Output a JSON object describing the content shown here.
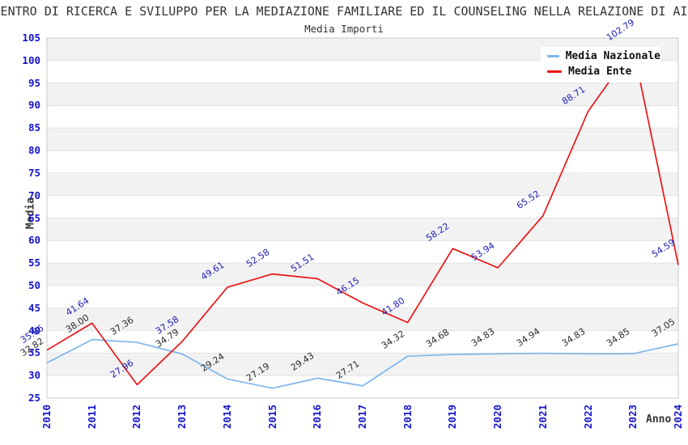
{
  "chart_data": {
    "type": "line",
    "title": "CENTRO DI RICERCA E SVILUPPO PER LA MEDIAZIONE FAMILIARE ED IL COUNSELING NELLA RELAZIONE DI AIU",
    "subtitle": "Media Importi",
    "xlabel": "Anno",
    "ylabel": "Media",
    "x": [
      2010,
      2011,
      2012,
      2013,
      2014,
      2015,
      2016,
      2017,
      2018,
      2019,
      2020,
      2021,
      2022,
      2023,
      2024
    ],
    "ylim": [
      25,
      105
    ],
    "ytick_step": 5,
    "grid": "horizontal-bands",
    "legend_position": "top-right",
    "series": [
      {
        "name": "Media Nazionale",
        "color": "#7cb5ec",
        "label_color": "#2b2b2b",
        "values": [
          32.82,
          38.0,
          37.36,
          34.79,
          29.24,
          27.19,
          29.43,
          27.71,
          34.32,
          34.68,
          34.83,
          34.94,
          34.83,
          34.85,
          37.05
        ]
      },
      {
        "name": "Media Ente",
        "color": "#ec1414",
        "label_color": "#1d1db4",
        "values": [
          35.66,
          41.64,
          27.96,
          37.58,
          49.61,
          52.58,
          51.51,
          46.15,
          41.8,
          58.22,
          53.94,
          65.52,
          88.71,
          102.79,
          54.59
        ]
      }
    ],
    "colors": {
      "tick_text": "#1414cc",
      "band_gray": "#f2f2f2",
      "gridline": "#e2e2e2",
      "plot_border": "#c9c9c9"
    }
  }
}
